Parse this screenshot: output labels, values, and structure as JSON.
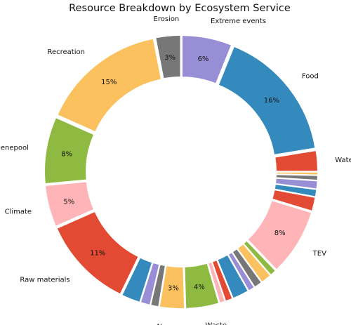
{
  "chart_data": {
    "type": "pie",
    "style": "donut",
    "title": "Resource Breakdown by Ecosystem Service",
    "start_angle_deg": 90,
    "direction": "clockwise",
    "slices": [
      {
        "label": "Extreme events",
        "value": 6,
        "pct": "6%",
        "color": "#988ED5"
      },
      {
        "label": "Food",
        "value": 16,
        "pct": "16%",
        "color": "#348ABD"
      },
      {
        "label": "Water",
        "value": 2.5,
        "pct": "",
        "color": "#E24A33"
      },
      {
        "label": "",
        "value": 0.4,
        "pct": "",
        "color": "#FBC15E"
      },
      {
        "label": "",
        "value": 0.6,
        "pct": "",
        "color": "#777777"
      },
      {
        "label": "",
        "value": 1.0,
        "pct": "",
        "color": "#988ED5"
      },
      {
        "label": "",
        "value": 0.9,
        "pct": "",
        "color": "#348ABD"
      },
      {
        "label": "",
        "value": 1.7,
        "pct": "",
        "color": "#E24A33"
      },
      {
        "label": "TEV",
        "value": 8,
        "pct": "8%",
        "color": "#FFB5B8"
      },
      {
        "label": "",
        "value": 0.8,
        "pct": "",
        "color": "#8EBA42"
      },
      {
        "label": "",
        "value": 1.3,
        "pct": "",
        "color": "#FBC15E"
      },
      {
        "label": "",
        "value": 1.0,
        "pct": "",
        "color": "#777777"
      },
      {
        "label": "",
        "value": 0.8,
        "pct": "",
        "color": "#988ED5"
      },
      {
        "label": "",
        "value": 2.0,
        "pct": "",
        "color": "#348ABD"
      },
      {
        "label": "",
        "value": 0.9,
        "pct": "",
        "color": "#E24A33"
      },
      {
        "label": "",
        "value": 0.7,
        "pct": "",
        "color": "#FFB5B8"
      },
      {
        "label": "Waste",
        "value": 4,
        "pct": "4%",
        "color": "#8EBA42"
      },
      {
        "label": "Nursery",
        "value": 3,
        "pct": "3%",
        "color": "#FBC15E"
      },
      {
        "label": "",
        "value": 1.0,
        "pct": "",
        "color": "#777777"
      },
      {
        "label": "",
        "value": 1.2,
        "pct": "",
        "color": "#988ED5"
      },
      {
        "label": "",
        "value": 2.3,
        "pct": "",
        "color": "#348ABD"
      },
      {
        "label": "Raw materials",
        "value": 11,
        "pct": "11%",
        "color": "#E24A33"
      },
      {
        "label": "Climate",
        "value": 5,
        "pct": "5%",
        "color": "#FFB5B8"
      },
      {
        "label": "Genepool",
        "value": 8,
        "pct": "8%",
        "color": "#8EBA42"
      },
      {
        "label": "Recreation",
        "value": 15,
        "pct": "15%",
        "color": "#FBC15E"
      },
      {
        "label": "Erosion",
        "value": 3,
        "pct": "3%",
        "color": "#777777"
      }
    ]
  }
}
